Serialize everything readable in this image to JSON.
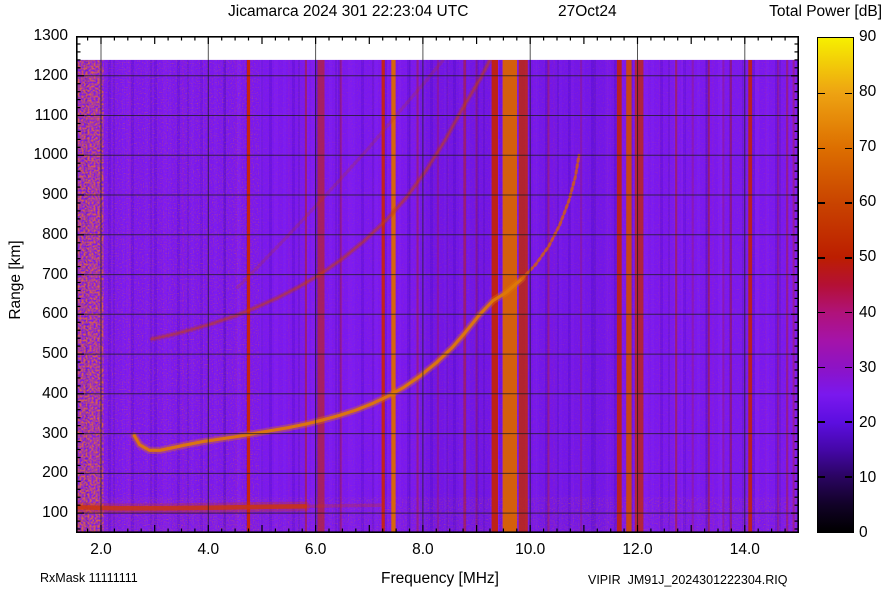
{
  "header": {
    "title": "Jicamarca 2024 301 22:23:04 UTC",
    "date_label": "27Oct24"
  },
  "footer": {
    "rx_mask": "RxMask 11111111",
    "file_label": "VIPIR  JM91J_2024301222304.RIQ"
  },
  "chart_data": {
    "type": "heatmap",
    "title": "Jicamarca 2024 301 22:23:04 UTC",
    "date_label": "27Oct24",
    "x_axis": {
      "label": "Frequency [MHz]",
      "min": 1.534,
      "max": 15.01,
      "tick_values": [
        2,
        4,
        6,
        8,
        10,
        12,
        14
      ],
      "tick_labels": [
        "2.0",
        "4.0",
        "6.0",
        "8.0",
        "10.0",
        "12.0",
        "14.0"
      ],
      "minor_step": 0.25,
      "major_step": 1.0,
      "grid_step": 2.0
    },
    "y_axis": {
      "label": "Range [km]",
      "min": 50,
      "max": 1300,
      "tick_values": [
        100,
        200,
        300,
        400,
        500,
        600,
        700,
        800,
        900,
        1000,
        1100,
        1200,
        1300
      ],
      "minor_step": 20,
      "major_step": 100,
      "grid_min": 100,
      "grid_max": 1200
    },
    "colorbar": {
      "title": "Total Power [dB]",
      "min": 0,
      "max": 90,
      "tick_values": [
        0,
        10,
        20,
        30,
        40,
        50,
        60,
        70,
        80,
        90
      ],
      "stops": [
        {
          "v": 90,
          "c": "#f6ef00"
        },
        {
          "v": 80,
          "c": "#eea312"
        },
        {
          "v": 70,
          "c": "#dd6f00"
        },
        {
          "v": 60,
          "c": "#c94400"
        },
        {
          "v": 50,
          "c": "#bc1e00"
        },
        {
          "v": 45,
          "c": "#b41035"
        },
        {
          "v": 40,
          "c": "#b0127a"
        },
        {
          "v": 35,
          "c": "#a513a8"
        },
        {
          "v": 30,
          "c": "#8d13c5"
        },
        {
          "v": 25,
          "c": "#7a18ee"
        },
        {
          "v": 20,
          "c": "#5c0ee0"
        },
        {
          "v": 15,
          "c": "#4507a8"
        },
        {
          "v": 10,
          "c": "#2a0460"
        },
        {
          "v": 5,
          "c": "#120228"
        },
        {
          "v": 0,
          "c": "#000000"
        }
      ]
    },
    "data_top_km": 1240,
    "background_db": 25,
    "base_color": "#7a18ee",
    "grid_color": "#1c1c1c",
    "shade_columns": [
      {
        "f1": 7.95,
        "f2": 9.28,
        "opacity": 0.1,
        "color": "#2800a8"
      },
      {
        "f1": 9.97,
        "f2": 11.6,
        "opacity": 0.08,
        "color": "#2800a8"
      }
    ],
    "noise_regions": [
      {
        "name": "full-noise",
        "f1": 1.534,
        "f2": 15.0,
        "km1": 50,
        "km2": 1240,
        "opacity": 0.2,
        "filter": "fine"
      },
      {
        "name": "left-third-noise",
        "f1": 1.534,
        "f2": 4.95,
        "km1": 50,
        "km2": 1240,
        "opacity": 0.32,
        "filter": "fine"
      },
      {
        "name": "bottom-noise",
        "f1": 1.534,
        "f2": 15.0,
        "km1": 50,
        "km2": 140,
        "opacity": 0.4,
        "filter": "fine"
      },
      {
        "name": "left-edge-noise",
        "f1": 1.534,
        "f2": 2.05,
        "km1": 50,
        "km2": 1240,
        "opacity": 0.85,
        "filter": "coarse"
      }
    ],
    "rfi_lines": [
      {
        "f": 4.75,
        "w": 0.06,
        "c": "#cc2503",
        "o": 0.95
      },
      {
        "f": 5.82,
        "w": 0.04,
        "c": "#b92006",
        "o": 0.5
      },
      {
        "f": 6.1,
        "w": 0.13,
        "c": "#c22408",
        "o": 0.6
      },
      {
        "f": 6.47,
        "w": 0.04,
        "c": "#b92006",
        "o": 0.35
      },
      {
        "f": 7.26,
        "w": 0.06,
        "c": "#cc2503",
        "o": 0.9
      },
      {
        "f": 7.45,
        "w": 0.08,
        "c": "#db6a00",
        "o": 0.95
      },
      {
        "f": 7.9,
        "w": 0.04,
        "c": "#b92006",
        "o": 0.4
      },
      {
        "f": 8.28,
        "w": 0.04,
        "c": "#a81a40",
        "o": 0.35
      },
      {
        "f": 8.78,
        "w": 0.05,
        "c": "#c22408",
        "o": 0.5
      },
      {
        "f": 9.0,
        "w": 0.04,
        "c": "#b92006",
        "o": 0.3
      },
      {
        "f": 9.34,
        "w": 0.12,
        "c": "#c52201",
        "o": 0.9
      },
      {
        "f": 9.62,
        "w": 0.27,
        "c": "#d96300",
        "o": 0.95
      },
      {
        "f": 9.87,
        "w": 0.17,
        "c": "#c32804",
        "o": 0.8
      },
      {
        "f": 10.34,
        "w": 0.04,
        "c": "#b81f3a",
        "o": 0.45
      },
      {
        "f": 10.95,
        "w": 0.04,
        "c": "#a81a40",
        "o": 0.3
      },
      {
        "f": 11.66,
        "w": 0.09,
        "c": "#c52201",
        "o": 0.85
      },
      {
        "f": 11.84,
        "w": 0.1,
        "c": "#ce4a02",
        "o": 0.9
      },
      {
        "f": 12.03,
        "w": 0.16,
        "c": "#c32804",
        "o": 0.75
      },
      {
        "f": 12.72,
        "w": 0.04,
        "c": "#b92006",
        "o": 0.5
      },
      {
        "f": 13.03,
        "w": 0.04,
        "c": "#a81a40",
        "o": 0.3
      },
      {
        "f": 13.33,
        "w": 0.04,
        "c": "#b92006",
        "o": 0.45
      },
      {
        "f": 13.6,
        "w": 0.04,
        "c": "#a81a40",
        "o": 0.3
      },
      {
        "f": 13.74,
        "w": 0.04,
        "c": "#b92006",
        "o": 0.4
      },
      {
        "f": 14.1,
        "w": 0.07,
        "c": "#c52201",
        "o": 0.85
      },
      {
        "f": 14.62,
        "w": 0.04,
        "c": "#a81a40",
        "o": 0.35
      },
      {
        "f": 14.79,
        "w": 0.04,
        "c": "#b92006",
        "o": 0.4
      },
      {
        "f": 14.91,
        "w": 0.04,
        "c": "#b92006",
        "o": 0.35
      }
    ],
    "traces": [
      {
        "name": "e-layer-echo",
        "color": "#cd3508",
        "width": 4.5,
        "opacity": 0.8,
        "glow": true,
        "points": [
          [
            1.534,
            115
          ],
          [
            2.3,
            112
          ],
          [
            3.2,
            112
          ],
          [
            4.2,
            114
          ],
          [
            5.1,
            116
          ],
          [
            5.8,
            117
          ]
        ]
      },
      {
        "name": "e-layer-echo-faint",
        "color": "#cd3508",
        "width": 3.5,
        "opacity": 0.28,
        "points": [
          [
            5.8,
            117
          ],
          [
            6.6,
            119
          ],
          [
            7.2,
            120
          ]
        ]
      },
      {
        "name": "f-trace-second-hop",
        "color": "#c03a08",
        "width": 5,
        "opacity": 0.28,
        "points": [
          [
            2.95,
            538
          ],
          [
            3.3,
            548
          ],
          [
            3.7,
            562
          ],
          [
            4.1,
            578
          ],
          [
            4.5,
            596
          ],
          [
            4.9,
            618
          ],
          [
            5.3,
            642
          ],
          [
            5.7,
            670
          ],
          [
            6.1,
            702
          ],
          [
            6.5,
            740
          ],
          [
            6.9,
            784
          ],
          [
            7.3,
            835
          ],
          [
            7.7,
            895
          ],
          [
            8.05,
            960
          ],
          [
            8.4,
            1035
          ],
          [
            8.75,
            1120
          ],
          [
            9.1,
            1200
          ],
          [
            9.28,
            1248
          ]
        ]
      },
      {
        "name": "f-trace-second-hop-core",
        "color": "#c84208",
        "width": 2.2,
        "opacity": 0.45,
        "dash": "3 2",
        "points": [
          [
            2.95,
            538
          ],
          [
            3.3,
            548
          ],
          [
            3.7,
            562
          ],
          [
            4.1,
            578
          ],
          [
            4.5,
            596
          ],
          [
            4.9,
            618
          ],
          [
            5.3,
            642
          ],
          [
            5.7,
            670
          ],
          [
            6.1,
            702
          ],
          [
            6.5,
            740
          ],
          [
            6.9,
            784
          ],
          [
            7.3,
            835
          ],
          [
            7.7,
            895
          ],
          [
            8.05,
            960
          ],
          [
            8.4,
            1035
          ],
          [
            8.75,
            1120
          ],
          [
            9.1,
            1200
          ],
          [
            9.28,
            1248
          ]
        ]
      },
      {
        "name": "f-trace-third-hop",
        "color": "#bd3a0c",
        "width": 3.5,
        "opacity": 0.24,
        "dash": "2 3",
        "points": [
          [
            4.55,
            668
          ],
          [
            5.0,
            730
          ],
          [
            5.5,
            800
          ],
          [
            6.0,
            872
          ],
          [
            6.5,
            945
          ],
          [
            7.0,
            1020
          ],
          [
            7.5,
            1100
          ],
          [
            8.0,
            1178
          ],
          [
            8.35,
            1235
          ],
          [
            8.42,
            1250
          ]
        ]
      },
      {
        "name": "f-trace-main",
        "color": "#e07a06",
        "width": 3.2,
        "opacity": 0.92,
        "glow": true,
        "points": [
          [
            2.62,
            295
          ],
          [
            2.72,
            272
          ],
          [
            2.9,
            258
          ],
          [
            3.1,
            258
          ],
          [
            3.35,
            265
          ],
          [
            3.6,
            272
          ],
          [
            3.9,
            280
          ],
          [
            4.2,
            286
          ],
          [
            4.5,
            292
          ],
          [
            4.8,
            299
          ],
          [
            5.15,
            307
          ],
          [
            5.5,
            315
          ],
          [
            5.85,
            325
          ],
          [
            6.15,
            335
          ],
          [
            6.45,
            346
          ],
          [
            6.75,
            359
          ],
          [
            7.05,
            375
          ],
          [
            7.35,
            394
          ],
          [
            7.65,
            417
          ],
          [
            7.95,
            445
          ],
          [
            8.25,
            478
          ],
          [
            8.55,
            517
          ],
          [
            8.8,
            556
          ],
          [
            9.05,
            598
          ],
          [
            9.3,
            634
          ],
          [
            9.55,
            655
          ],
          [
            9.85,
            690
          ]
        ]
      },
      {
        "name": "f-trace-main-tip",
        "color": "#d66008",
        "width": 3,
        "opacity": 0.8,
        "dash": "3 3",
        "points": [
          [
            9.85,
            690
          ],
          [
            10.1,
            725
          ],
          [
            10.35,
            772
          ],
          [
            10.55,
            825
          ],
          [
            10.72,
            885
          ],
          [
            10.84,
            945
          ],
          [
            10.91,
            1000
          ]
        ]
      }
    ]
  }
}
